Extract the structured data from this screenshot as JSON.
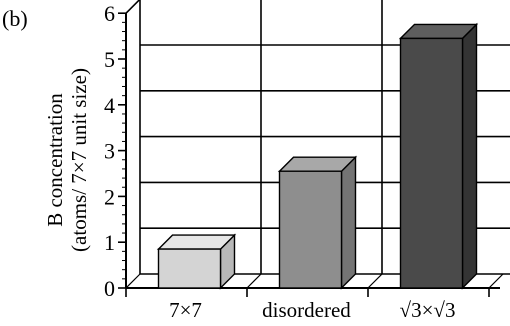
{
  "panel_label": "(b)",
  "chart_data": {
    "type": "bar",
    "style": "3d",
    "ylabel_lines": [
      "B concentration",
      "(atoms/ 7×7 unit size)"
    ],
    "xlabel": "",
    "categories": [
      "7×7",
      "disordered",
      "√3×√3"
    ],
    "values": [
      0.85,
      2.55,
      5.45
    ],
    "ylim": [
      0,
      6
    ],
    "yticks": [
      0,
      1,
      2,
      3,
      4,
      5,
      6
    ],
    "grid": true,
    "bar_colors": [
      {
        "front": "#d4d4d4",
        "top": "#e6e6e6",
        "side": "#b8b8b8"
      },
      {
        "front": "#8e8e8e",
        "top": "#a8a8a8",
        "side": "#747474"
      },
      {
        "front": "#4a4a4a",
        "top": "#5e5e5e",
        "side": "#343434"
      }
    ]
  }
}
